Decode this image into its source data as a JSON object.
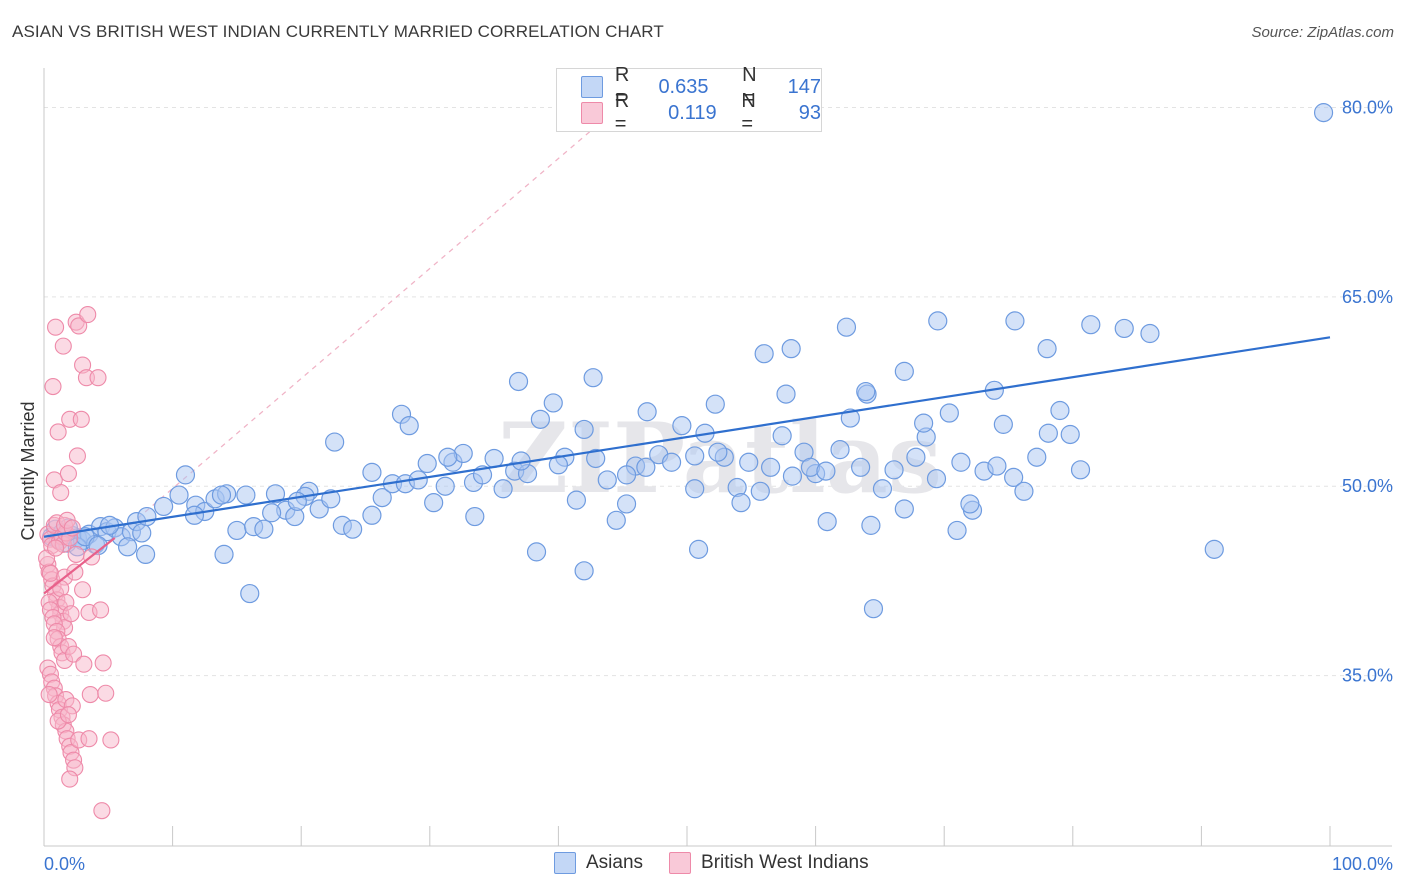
{
  "header": {
    "title": "ASIAN VS BRITISH WEST INDIAN CURRENTLY MARRIED CORRELATION CHART",
    "source": "Source: ZipAtlas.com"
  },
  "legend": {
    "rows": [
      {
        "r_label": "R =",
        "r_value": "0.635",
        "n_label": "N =",
        "n_value": "147"
      },
      {
        "r_label": "R =",
        "r_value": "0.119",
        "n_label": "N =",
        "n_value": "93"
      }
    ]
  },
  "bottom_legend": {
    "asians": "Asians",
    "bwi": "British West Indians"
  },
  "watermark": "ZIPatlas",
  "colors": {
    "asian_fill": "#a9c6f2",
    "asian_stroke": "#6e9be0",
    "asian_line": "#2f6fce",
    "bwi_fill": "#f7b5c9",
    "bwi_stroke": "#ee8aa9",
    "bwi_line": "#e8608a",
    "axis_text": "#3a74d0",
    "grid": "#e3e3e3"
  },
  "chart_data": {
    "type": "scatter",
    "title": "ASIAN VS BRITISH WEST INDIAN CURRENTLY MARRIED CORRELATION CHART",
    "xlabel": "",
    "ylabel": "Currently Married",
    "xlim": [
      0,
      100
    ],
    "ylim": [
      21.5,
      82.5
    ],
    "x_tick_labels": [
      "0.0%",
      "100.0%"
    ],
    "y_ticks": [
      35,
      50,
      65,
      80
    ],
    "y_tick_labels": [
      "35.0%",
      "50.0%",
      "65.0%",
      "80.0%"
    ],
    "grid": true,
    "legend_position": "top-center",
    "series": [
      {
        "name": "Asians",
        "r": 0.635,
        "n": 147,
        "trend": {
          "x": [
            0,
            100
          ],
          "y": [
            46.0,
            61.8
          ]
        },
        "points": [
          [
            0.6,
            46.0
          ],
          [
            0.9,
            46.6
          ],
          [
            1.1,
            45.8
          ],
          [
            1.4,
            46.3
          ],
          [
            1.8,
            45.5
          ],
          [
            2.2,
            46.1
          ],
          [
            2.6,
            45.9
          ],
          [
            3.0,
            45.7
          ],
          [
            3.5,
            46.2
          ],
          [
            4.0,
            45.4
          ],
          [
            4.4,
            46.8
          ],
          [
            4.9,
            46.4
          ],
          [
            5.5,
            46.7
          ],
          [
            6.0,
            46.0
          ],
          [
            6.8,
            46.4
          ],
          [
            7.2,
            47.2
          ],
          [
            7.6,
            46.3
          ],
          [
            8.0,
            47.6
          ],
          [
            1.9,
            46.7
          ],
          [
            2.6,
            45.2
          ],
          [
            3.2,
            46.0
          ],
          [
            4.2,
            45.3
          ],
          [
            5.1,
            46.9
          ],
          [
            6.5,
            45.2
          ],
          [
            7.9,
            44.6
          ],
          [
            10.5,
            49.3
          ],
          [
            11.0,
            50.9
          ],
          [
            11.8,
            48.5
          ],
          [
            12.5,
            48.0
          ],
          [
            13.3,
            49.0
          ],
          [
            14.2,
            49.4
          ],
          [
            15.0,
            46.5
          ],
          [
            15.7,
            49.3
          ],
          [
            16.3,
            46.8
          ],
          [
            17.1,
            46.6
          ],
          [
            18.0,
            49.4
          ],
          [
            18.8,
            48.1
          ],
          [
            19.5,
            47.6
          ],
          [
            20.6,
            49.6
          ],
          [
            21.4,
            48.2
          ],
          [
            22.3,
            49.0
          ],
          [
            23.2,
            46.9
          ],
          [
            24.0,
            46.6
          ],
          [
            25.5,
            47.7
          ],
          [
            26.3,
            49.1
          ],
          [
            27.1,
            50.2
          ],
          [
            28.1,
            50.2
          ],
          [
            29.1,
            50.5
          ],
          [
            29.8,
            51.8
          ],
          [
            30.3,
            48.7
          ],
          [
            31.2,
            50.0
          ],
          [
            31.8,
            51.9
          ],
          [
            32.6,
            52.6
          ],
          [
            33.4,
            50.3
          ],
          [
            34.1,
            50.9
          ],
          [
            35.0,
            52.2
          ],
          [
            35.7,
            49.8
          ],
          [
            36.6,
            51.2
          ],
          [
            37.6,
            51.0
          ],
          [
            38.6,
            55.3
          ],
          [
            39.6,
            56.6
          ],
          [
            40.5,
            52.3
          ],
          [
            41.4,
            48.9
          ],
          [
            42.0,
            54.5
          ],
          [
            42.9,
            52.2
          ],
          [
            43.8,
            50.5
          ],
          [
            44.5,
            47.3
          ],
          [
            45.3,
            48.6
          ],
          [
            46.0,
            51.6
          ],
          [
            46.9,
            55.9
          ],
          [
            47.8,
            52.5
          ],
          [
            48.8,
            51.9
          ],
          [
            49.6,
            54.8
          ],
          [
            50.6,
            52.4
          ],
          [
            51.4,
            54.2
          ],
          [
            52.2,
            56.5
          ],
          [
            52.9,
            52.3
          ],
          [
            53.9,
            49.9
          ],
          [
            54.8,
            51.9
          ],
          [
            55.7,
            49.6
          ],
          [
            56.5,
            51.5
          ],
          [
            57.4,
            54.0
          ],
          [
            58.2,
            50.8
          ],
          [
            59.1,
            52.7
          ],
          [
            60.0,
            51.0
          ],
          [
            60.9,
            47.2
          ],
          [
            61.9,
            52.9
          ],
          [
            62.7,
            55.4
          ],
          [
            63.5,
            51.5
          ],
          [
            64.3,
            46.9
          ],
          [
            65.2,
            49.8
          ],
          [
            66.1,
            51.3
          ],
          [
            66.9,
            48.2
          ],
          [
            67.8,
            52.3
          ],
          [
            68.6,
            53.9
          ],
          [
            69.4,
            50.6
          ],
          [
            70.4,
            55.8
          ],
          [
            71.3,
            51.9
          ],
          [
            72.2,
            48.1
          ],
          [
            73.1,
            51.2
          ],
          [
            73.9,
            57.6
          ],
          [
            74.6,
            54.9
          ],
          [
            75.4,
            50.7
          ],
          [
            76.2,
            49.6
          ],
          [
            77.2,
            52.3
          ],
          [
            78.1,
            54.2
          ],
          [
            79.0,
            56.0
          ],
          [
            79.8,
            54.1
          ],
          [
            80.6,
            51.3
          ],
          [
            81.4,
            62.8
          ],
          [
            20.3,
            49.2
          ],
          [
            25.5,
            51.1
          ],
          [
            27.8,
            55.7
          ],
          [
            33.5,
            47.6
          ],
          [
            36.9,
            58.3
          ],
          [
            38.3,
            44.8
          ],
          [
            42.7,
            58.6
          ],
          [
            46.8,
            51.5
          ],
          [
            52.4,
            52.7
          ],
          [
            56.0,
            60.5
          ],
          [
            57.7,
            57.3
          ],
          [
            64.0,
            57.3
          ],
          [
            68.4,
            55.0
          ],
          [
            71.0,
            46.5
          ],
          [
            72.0,
            48.6
          ],
          [
            74.1,
            51.6
          ],
          [
            63.9,
            57.5
          ],
          [
            59.6,
            51.5
          ],
          [
            54.2,
            48.7
          ],
          [
            50.6,
            49.8
          ],
          [
            45.3,
            50.9
          ],
          [
            40.0,
            51.7
          ],
          [
            37.1,
            52.0
          ],
          [
            31.4,
            52.3
          ],
          [
            28.4,
            54.8
          ],
          [
            22.6,
            53.5
          ],
          [
            9.3,
            48.4
          ],
          [
            11.7,
            47.7
          ],
          [
            14.0,
            44.6
          ],
          [
            16.0,
            41.5
          ],
          [
            17.7,
            47.9
          ],
          [
            19.7,
            48.8
          ],
          [
            13.8,
            49.3
          ],
          [
            58.1,
            60.9
          ],
          [
            62.4,
            62.6
          ],
          [
            69.5,
            63.1
          ],
          [
            75.5,
            63.1
          ],
          [
            78.0,
            60.9
          ],
          [
            84.0,
            62.5
          ],
          [
            86.0,
            62.1
          ],
          [
            91.0,
            45.0
          ],
          [
            99.5,
            79.6
          ],
          [
            60.8,
            51.2
          ],
          [
            64.5,
            40.3
          ],
          [
            50.9,
            45.0
          ],
          [
            66.9,
            59.1
          ],
          [
            42.0,
            43.3
          ]
        ]
      },
      {
        "name": "British West Indians",
        "r": 0.119,
        "n": 93,
        "trend": {
          "x": [
            0,
            5.5
          ],
          "y": [
            41.5,
            45.9
          ]
        },
        "points": [
          [
            0.3,
            46.2
          ],
          [
            0.5,
            45.8
          ],
          [
            0.6,
            45.3
          ],
          [
            0.8,
            46.9
          ],
          [
            1.0,
            47.1
          ],
          [
            1.2,
            45.6
          ],
          [
            1.4,
            46.0
          ],
          [
            1.5,
            45.4
          ],
          [
            1.7,
            46.3
          ],
          [
            2.0,
            45.9
          ],
          [
            0.3,
            43.8
          ],
          [
            0.4,
            43.2
          ],
          [
            0.6,
            42.6
          ],
          [
            0.7,
            42.1
          ],
          [
            0.9,
            41.5
          ],
          [
            1.0,
            41.0
          ],
          [
            1.2,
            40.4
          ],
          [
            1.3,
            39.9
          ],
          [
            1.5,
            39.3
          ],
          [
            1.6,
            38.8
          ],
          [
            0.2,
            44.3
          ],
          [
            0.4,
            40.8
          ],
          [
            0.5,
            40.2
          ],
          [
            0.7,
            39.6
          ],
          [
            0.8,
            39.1
          ],
          [
            1.0,
            38.5
          ],
          [
            1.1,
            37.9
          ],
          [
            1.3,
            37.3
          ],
          [
            1.4,
            36.8
          ],
          [
            1.6,
            36.2
          ],
          [
            0.3,
            35.6
          ],
          [
            0.5,
            35.1
          ],
          [
            0.6,
            34.5
          ],
          [
            0.8,
            34.0
          ],
          [
            0.9,
            33.4
          ],
          [
            1.1,
            32.8
          ],
          [
            1.2,
            32.3
          ],
          [
            1.4,
            31.7
          ],
          [
            1.5,
            31.1
          ],
          [
            1.7,
            30.6
          ],
          [
            1.8,
            30.0
          ],
          [
            2.0,
            29.4
          ],
          [
            2.1,
            28.9
          ],
          [
            2.3,
            28.3
          ],
          [
            2.4,
            27.7
          ],
          [
            0.9,
            62.6
          ],
          [
            1.5,
            61.1
          ],
          [
            2.5,
            63.0
          ],
          [
            2.7,
            62.7
          ],
          [
            3.0,
            59.6
          ],
          [
            3.3,
            58.6
          ],
          [
            0.7,
            57.9
          ],
          [
            1.1,
            54.3
          ],
          [
            2.0,
            55.3
          ],
          [
            2.9,
            55.3
          ],
          [
            0.8,
            50.5
          ],
          [
            1.3,
            49.5
          ],
          [
            1.9,
            51.0
          ],
          [
            2.6,
            52.4
          ],
          [
            3.4,
            63.6
          ],
          [
            1.6,
            46.9
          ],
          [
            1.8,
            47.3
          ],
          [
            2.2,
            46.7
          ],
          [
            0.5,
            43.1
          ],
          [
            1.6,
            42.8
          ],
          [
            2.4,
            43.2
          ],
          [
            3.0,
            41.8
          ],
          [
            3.5,
            40.0
          ],
          [
            0.8,
            38.0
          ],
          [
            1.9,
            37.3
          ],
          [
            2.3,
            36.7
          ],
          [
            3.1,
            35.9
          ],
          [
            0.4,
            33.5
          ],
          [
            1.7,
            33.1
          ],
          [
            2.2,
            32.6
          ],
          [
            3.6,
            33.5
          ],
          [
            1.1,
            31.4
          ],
          [
            1.9,
            31.9
          ],
          [
            2.7,
            29.9
          ],
          [
            3.5,
            30.0
          ],
          [
            2.0,
            26.8
          ],
          [
            4.5,
            24.3
          ],
          [
            1.3,
            41.9
          ],
          [
            1.7,
            40.8
          ],
          [
            2.1,
            39.9
          ],
          [
            0.9,
            45.1
          ],
          [
            2.5,
            44.6
          ],
          [
            3.7,
            44.4
          ],
          [
            4.4,
            40.2
          ],
          [
            4.6,
            36.0
          ],
          [
            4.8,
            33.6
          ],
          [
            5.2,
            29.9
          ],
          [
            4.2,
            58.6
          ]
        ]
      }
    ]
  }
}
